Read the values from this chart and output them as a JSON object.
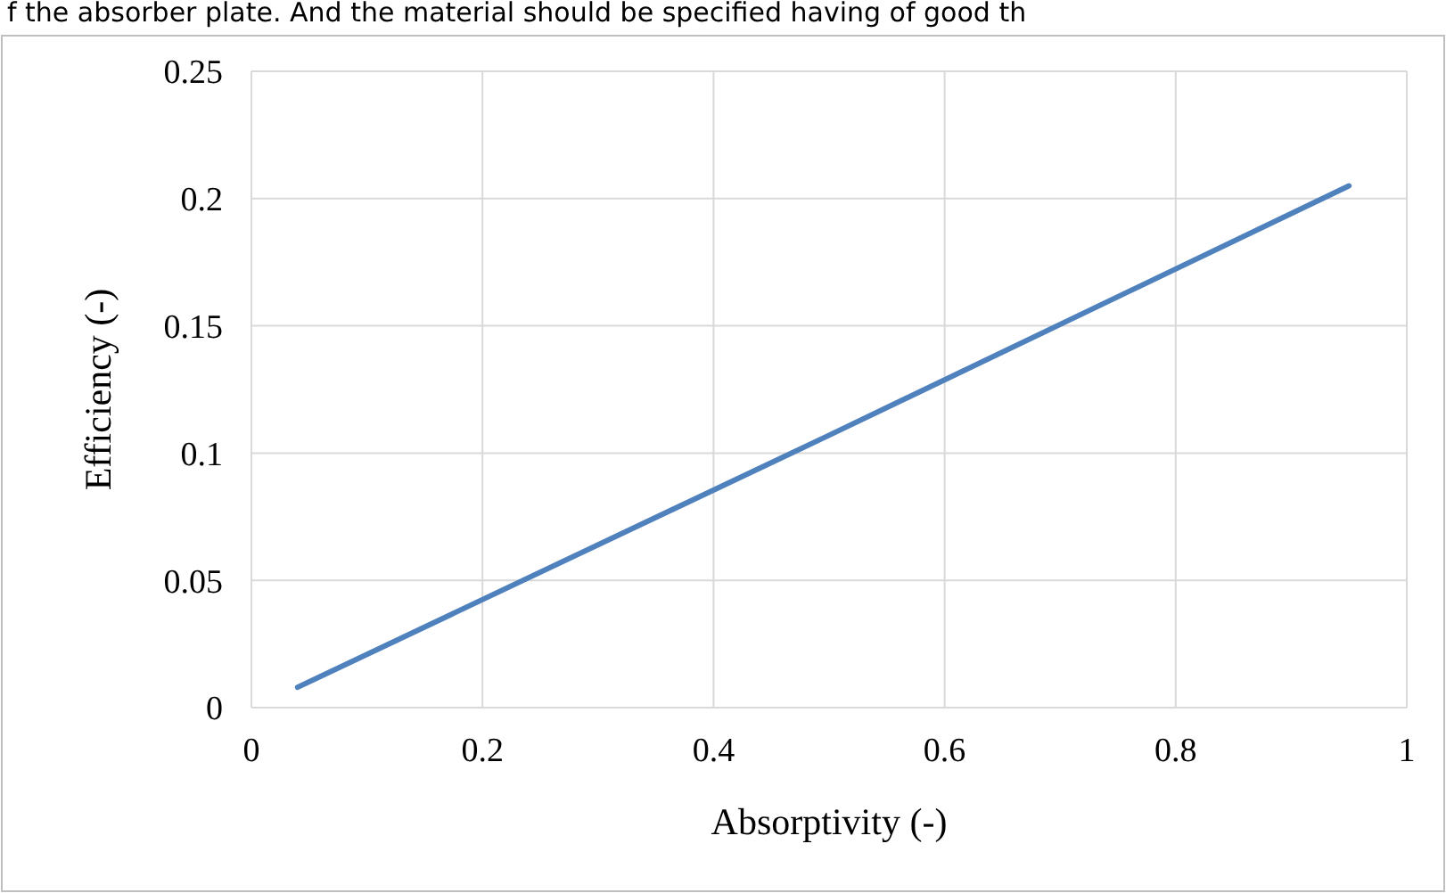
{
  "chart_data": {
    "type": "line",
    "xlabel": "Absorptivity (-)",
    "ylabel": "Efficiency (-)",
    "annotations": [
      "f the absorber plate. And the material should be specified having of good th"
    ],
    "x": [
      0.04,
      0.5,
      0.95
    ],
    "series": [
      {
        "color": "#4f81bd",
        "values": [
          0.008,
          0.107,
          0.205
        ]
      }
    ],
    "xlim": [
      0,
      1
    ],
    "xticks": [
      0,
      0.2,
      0.4,
      0.6,
      0.8,
      1
    ],
    "ylim": [
      0,
      0.25
    ],
    "yticks": [
      0,
      0.05,
      0.1,
      0.15,
      0.2,
      0.25
    ],
    "grid": true,
    "marker": "none",
    "line_style": "solid"
  }
}
